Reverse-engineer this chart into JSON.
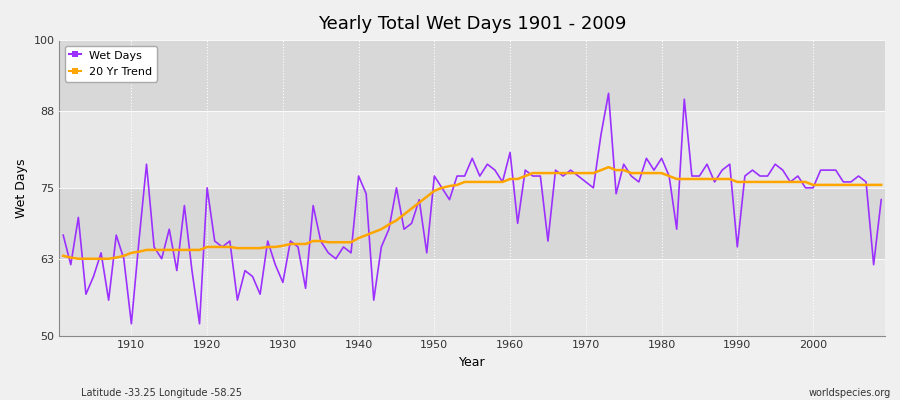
{
  "title": "Yearly Total Wet Days 1901 - 2009",
  "xlabel": "Year",
  "ylabel": "Wet Days",
  "footnote_left": "Latitude -33.25 Longitude -58.25",
  "footnote_right": "worldspecies.org",
  "ylim": [
    50,
    100
  ],
  "yticks": [
    50,
    63,
    75,
    88,
    100
  ],
  "fig_bg_color": "#f0f0f0",
  "plot_bg_color": "#e8e8e8",
  "band_color": "#d8d8d8",
  "wet_days_color": "#9B30FF",
  "trend_color": "#FFA500",
  "years": [
    1901,
    1902,
    1903,
    1904,
    1905,
    1906,
    1907,
    1908,
    1909,
    1910,
    1911,
    1912,
    1913,
    1914,
    1915,
    1916,
    1917,
    1918,
    1919,
    1920,
    1921,
    1922,
    1923,
    1924,
    1925,
    1926,
    1927,
    1928,
    1929,
    1930,
    1931,
    1932,
    1933,
    1934,
    1935,
    1936,
    1937,
    1938,
    1939,
    1940,
    1941,
    1942,
    1943,
    1944,
    1945,
    1946,
    1947,
    1948,
    1949,
    1950,
    1951,
    1952,
    1953,
    1954,
    1955,
    1956,
    1957,
    1958,
    1959,
    1960,
    1961,
    1962,
    1963,
    1964,
    1965,
    1966,
    1967,
    1968,
    1969,
    1970,
    1971,
    1972,
    1973,
    1974,
    1975,
    1976,
    1977,
    1978,
    1979,
    1980,
    1981,
    1982,
    1983,
    1984,
    1985,
    1986,
    1987,
    1988,
    1989,
    1990,
    1991,
    1992,
    1993,
    1994,
    1995,
    1996,
    1997,
    1998,
    1999,
    2000,
    2001,
    2002,
    2003,
    2004,
    2005,
    2006,
    2007,
    2008,
    2009
  ],
  "wet_days": [
    67,
    62,
    70,
    57,
    60,
    64,
    56,
    67,
    63,
    52,
    66,
    79,
    65,
    63,
    68,
    61,
    72,
    61,
    52,
    75,
    66,
    65,
    66,
    56,
    61,
    60,
    57,
    66,
    62,
    59,
    66,
    65,
    58,
    72,
    66,
    64,
    63,
    65,
    64,
    77,
    74,
    56,
    65,
    68,
    75,
    68,
    69,
    73,
    64,
    77,
    75,
    73,
    77,
    77,
    80,
    77,
    79,
    78,
    76,
    81,
    69,
    78,
    77,
    77,
    66,
    78,
    77,
    78,
    77,
    76,
    75,
    84,
    91,
    74,
    79,
    77,
    76,
    80,
    78,
    80,
    77,
    68,
    90,
    77,
    77,
    79,
    76,
    78,
    79,
    65,
    77,
    78,
    77,
    77,
    79,
    78,
    76,
    77,
    75,
    75,
    78,
    78,
    78,
    76,
    76,
    77,
    76,
    62,
    73
  ],
  "trend": [
    63.5,
    63.2,
    63.0,
    63.0,
    63.0,
    63.0,
    63.0,
    63.2,
    63.5,
    64.0,
    64.2,
    64.5,
    64.5,
    64.5,
    64.5,
    64.5,
    64.5,
    64.5,
    64.5,
    65.0,
    65.0,
    65.0,
    65.0,
    64.8,
    64.8,
    64.8,
    64.8,
    65.0,
    65.0,
    65.2,
    65.5,
    65.5,
    65.5,
    66.0,
    66.0,
    65.8,
    65.8,
    65.8,
    65.8,
    66.5,
    67.0,
    67.5,
    68.0,
    68.8,
    69.5,
    70.5,
    71.5,
    72.5,
    73.5,
    74.5,
    75.0,
    75.3,
    75.5,
    76.0,
    76.0,
    76.0,
    76.0,
    76.0,
    76.0,
    76.5,
    76.5,
    77.0,
    77.5,
    77.5,
    77.5,
    77.5,
    77.5,
    77.5,
    77.5,
    77.5,
    77.5,
    78.0,
    78.5,
    78.0,
    78.0,
    77.5,
    77.5,
    77.5,
    77.5,
    77.5,
    77.0,
    76.5,
    76.5,
    76.5,
    76.5,
    76.5,
    76.5,
    76.5,
    76.5,
    76.0,
    76.0,
    76.0,
    76.0,
    76.0,
    76.0,
    76.0,
    76.0,
    76.0,
    76.0,
    75.5,
    75.5,
    75.5,
    75.5,
    75.5,
    75.5,
    75.5,
    75.5,
    75.5,
    75.5
  ]
}
